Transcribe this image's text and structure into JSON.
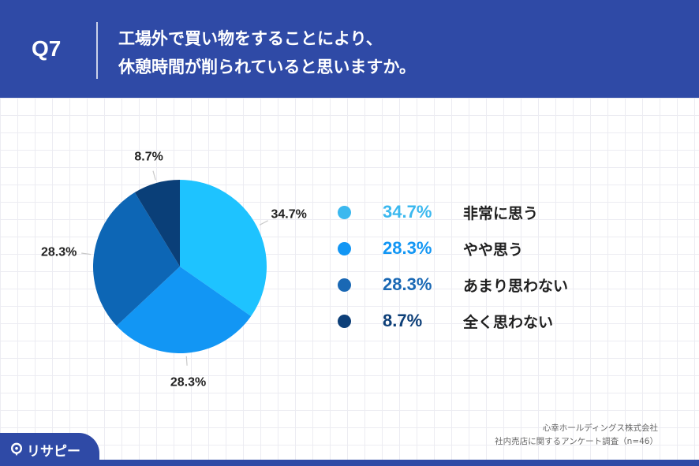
{
  "question": {
    "number": "Q7",
    "line1": "工場外で買い物をすることにより、",
    "line2": "休憩時間が削られていると思いますか。"
  },
  "chart_data": {
    "type": "pie",
    "categories": [
      "非常に思う",
      "やや思う",
      "あまり思わない",
      "全く思わない"
    ],
    "values": [
      34.7,
      28.3,
      28.3,
      8.7
    ],
    "value_labels": [
      "34.7%",
      "28.3%",
      "28.3%",
      "8.7%"
    ],
    "colors": [
      "#1ec3ff",
      "#1296f4",
      "#0d66b5",
      "#0a3f78"
    ],
    "legend_colors": [
      "#3bb8ef",
      "#1296f4",
      "#1a68b4",
      "#0d3f78"
    ],
    "start_angle": "12 o'clock",
    "direction": "clockwise",
    "legend_position": "right"
  },
  "source": {
    "company": "心幸ホールディングス株式会社",
    "survey": "社内売店に関するアンケート調査（n=46）"
  },
  "logo": {
    "text": "リサピー"
  }
}
